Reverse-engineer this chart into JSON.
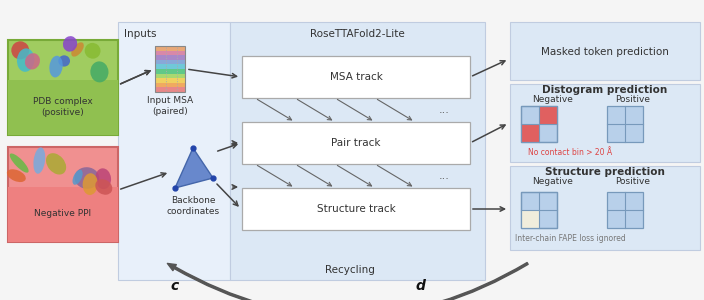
{
  "bg_color": "#f5f5f5",
  "light_blue_bg": "#dce8f5",
  "inputs_panel_bg": "#e8f0fa",
  "right_panel_bg": "#dce8f5",
  "green_box_fc": "#8cc44a",
  "green_box_ec": "#6aaa28",
  "red_box_fc": "#f08080",
  "red_box_ec": "#d06060",
  "track_box_fc": "#ffffff",
  "track_box_ec": "#aaaaaa",
  "arrow_color": "#444444",
  "diag_arrow_color": "#666666",
  "recycling_color": "#555555",
  "label_c": "c",
  "label_d": "d",
  "title_rosetta": "RoseTTAFold2-Lite",
  "label_inputs": "Inputs",
  "label_msa_track": "MSA track",
  "label_pair_track": "Pair track",
  "label_structure_track": "Structure track",
  "label_input_msa": "Input MSA\n(paired)",
  "label_backbone": "Backbone\ncoordinates",
  "label_pdb": "PDB complex\n(positive)",
  "label_negative": "Negative PPI",
  "label_masked": "Masked token prediction",
  "label_distogram": "Distogram prediction",
  "label_structure_pred": "Structure prediction",
  "label_recycling": "Recycling",
  "label_no_contact": "No contact bin > 20 Å",
  "label_interchain": "Inter-chain FAPE loss ignored",
  "label_neg": "Negative",
  "label_pos": "Positive",
  "dist_red_color": "#e06060",
  "dist_blue_color": "#b8d0ea",
  "dist_grid_color": "#7799bb",
  "str_cream_color": "#f0eddc",
  "msa_colors": [
    "#e88888",
    "#f0aa60",
    "#f0d060",
    "#a8d870",
    "#60c888",
    "#70c8d8",
    "#88a8d8",
    "#a888c8",
    "#d888a8",
    "#e8a878"
  ],
  "fs_tiny": 5.5,
  "fs_small": 6.5,
  "fs_med": 7.5,
  "fs_large": 8.5,
  "fs_bold": 9
}
